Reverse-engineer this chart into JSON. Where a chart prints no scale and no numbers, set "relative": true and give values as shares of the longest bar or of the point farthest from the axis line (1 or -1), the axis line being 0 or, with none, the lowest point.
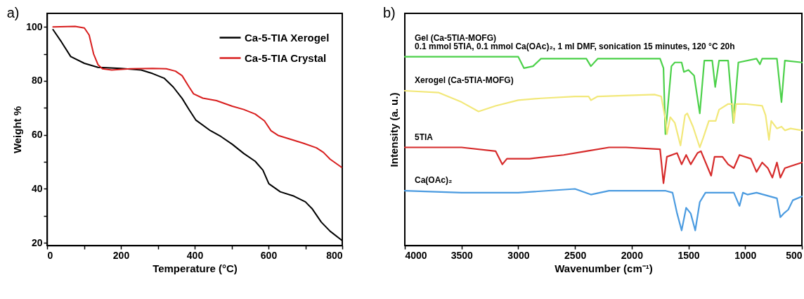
{
  "chart_data": [
    {
      "type": "line",
      "title": "a)",
      "xlabel": "Temperature (°C)",
      "ylabel": "Weight %",
      "xlim": [
        0,
        800
      ],
      "ylim": [
        19,
        105
      ],
      "xticks": [
        0,
        {
          "value": 100,
          "label": null
        },
        200,
        {
          "value": 300,
          "label": null
        },
        400,
        {
          "value": 500,
          "label": null
        },
        600,
        {
          "value": 700,
          "label": null
        },
        800
      ],
      "yticks": [
        20,
        {
          "value": 30,
          "label": null
        },
        40,
        {
          "value": 50,
          "label": null
        },
        60,
        {
          "value": 70,
          "label": null
        },
        80,
        {
          "value": 90,
          "label": null
        },
        100
      ],
      "legend": "top right",
      "grid": false,
      "marker": "none",
      "line_style": "solid",
      "series": [
        {
          "name": "Ca-5-TIA Xerogel",
          "color": "#000000",
          "x": [
            16,
            39,
            64,
            101,
            138,
            200,
            255,
            286,
            317,
            342,
            366,
            385,
            403,
            440,
            471,
            502,
            533,
            564,
            585,
            601,
            632,
            669,
            700,
            718,
            743,
            767,
            798
          ],
          "values": [
            99,
            94.4,
            89,
            86.5,
            85,
            84.6,
            84,
            82.7,
            81,
            77.7,
            73.5,
            69.3,
            65.5,
            61.8,
            59.4,
            56.5,
            53.1,
            50.2,
            46.9,
            41.9,
            38.9,
            37.3,
            35.2,
            32.7,
            27.7,
            24.3,
            21
          ]
        },
        {
          "name": "Ca-5-TIA Crystal",
          "color": "#d81e1e",
          "x": [
            16,
            76,
            101,
            114,
            126,
            138,
            150,
            175,
            225,
            286,
            323,
            348,
            366,
            385,
            397,
            422,
            459,
            502,
            533,
            564,
            589,
            607,
            626,
            657,
            694,
            730,
            749,
            767,
            798
          ],
          "values": [
            100,
            100.2,
            99.6,
            97,
            90,
            86,
            84.5,
            84,
            84.5,
            84.6,
            84.5,
            83.6,
            81.9,
            77.7,
            75.2,
            73.6,
            72.7,
            70.6,
            69.4,
            67.7,
            65.2,
            61.5,
            59.8,
            58.5,
            56.9,
            55.2,
            53.5,
            51,
            48
          ]
        }
      ]
    },
    {
      "type": "line",
      "title": "b)",
      "xlabel": "Wavenumber (cm⁻¹)",
      "ylabel": "Intensity (a. u.)",
      "relative": true,
      "xlim": [
        4000,
        500
      ],
      "xticks": [
        4000,
        3500,
        3000,
        2500,
        2000,
        1500,
        1000,
        500
      ],
      "legend": false,
      "grid": false,
      "marker": "none",
      "line_style": "solid",
      "annotations": [
        "0.1 mmol 5TIA, 0.1 mmol Ca(OAc)₂, 1 ml DMF, sonication 15 minutes, 120 °C 20h"
      ],
      "series": [
        {
          "name": "Gel (Ca-5TIA-MOFG)",
          "color": "#4cd14a",
          "x": [
            4000,
            3500,
            3000,
            2950,
            2870,
            2800,
            2500,
            2400,
            2360,
            2300,
            1750,
            1720,
            1703,
            1650,
            1620,
            1560,
            1540,
            1500,
            1450,
            1400,
            1360,
            1290,
            1264,
            1230,
            1150,
            1104,
            1060,
            900,
            870,
            850,
            720,
            680,
            650,
            500
          ],
          "values": [
            1,
            1,
            1,
            0.94,
            0.95,
            0.99,
            0.99,
            0.99,
            0.95,
            0.99,
            0.99,
            0.94,
            0.59,
            0.95,
            0.97,
            0.97,
            0.92,
            0.93,
            0.9,
            0.7,
            0.98,
            0.98,
            0.84,
            0.98,
            0.98,
            0.65,
            0.97,
            0.99,
            0.96,
            0.99,
            0.99,
            0.76,
            0.98,
            0.97
          ]
        },
        {
          "name": "Xerogel (Ca-5TIA-MOFG)",
          "color": "#f2e87a",
          "x": [
            4000,
            3700,
            3500,
            3350,
            3200,
            3000,
            2800,
            2500,
            2380,
            2360,
            2300,
            1800,
            1740,
            1700,
            1690,
            1660,
            1620,
            1570,
            1530,
            1510,
            1460,
            1400,
            1370,
            1320,
            1260,
            1230,
            1150,
            1110,
            1100,
            1080,
            1000,
            850,
            820,
            790,
            770,
            720,
            680,
            650,
            600,
            500
          ],
          "values": [
            0.82,
            0.81,
            0.76,
            0.71,
            0.74,
            0.77,
            0.78,
            0.79,
            0.79,
            0.77,
            0.79,
            0.8,
            0.79,
            0.66,
            0.59,
            0.68,
            0.65,
            0.53,
            0.69,
            0.7,
            0.63,
            0.52,
            0.57,
            0.66,
            0.66,
            0.72,
            0.75,
            0.75,
            0.65,
            0.75,
            0.75,
            0.74,
            0.69,
            0.56,
            0.66,
            0.62,
            0.63,
            0.61,
            0.62,
            0.61
          ]
        },
        {
          "name": "5TIA",
          "color": "#d62b2b",
          "x": [
            4000,
            3500,
            3200,
            3140,
            3100,
            2900,
            2600,
            2400,
            2200,
            2050,
            1750,
            1720,
            1690,
            1600,
            1560,
            1520,
            1480,
            1420,
            1390,
            1300,
            1270,
            1200,
            1150,
            1100,
            1050,
            950,
            900,
            850,
            800,
            760,
            720,
            690,
            650,
            600,
            500
          ],
          "values": [
            0.52,
            0.52,
            0.5,
            0.43,
            0.46,
            0.46,
            0.48,
            0.5,
            0.52,
            0.52,
            0.51,
            0.33,
            0.47,
            0.49,
            0.43,
            0.48,
            0.43,
            0.49,
            0.5,
            0.37,
            0.47,
            0.47,
            0.43,
            0.41,
            0.48,
            0.46,
            0.39,
            0.44,
            0.41,
            0.36,
            0.44,
            0.36,
            0.41,
            0.42,
            0.44
          ]
        },
        {
          "name": "Ca(OAc)₂",
          "color": "#4b9be0",
          "x": [
            4000,
            3500,
            3000,
            2500,
            2360,
            2200,
            1700,
            1640,
            1600,
            1560,
            1520,
            1480,
            1440,
            1400,
            1350,
            1100,
            1050,
            1020,
            980,
            900,
            720,
            690,
            660,
            620,
            580,
            500
          ],
          "values": [
            0.29,
            0.28,
            0.28,
            0.3,
            0.27,
            0.29,
            0.29,
            0.28,
            0.17,
            0.08,
            0.2,
            0.17,
            0.08,
            0.23,
            0.28,
            0.28,
            0.21,
            0.28,
            0.27,
            0.28,
            0.25,
            0.15,
            0.17,
            0.19,
            0.24,
            0.26
          ]
        }
      ]
    }
  ]
}
